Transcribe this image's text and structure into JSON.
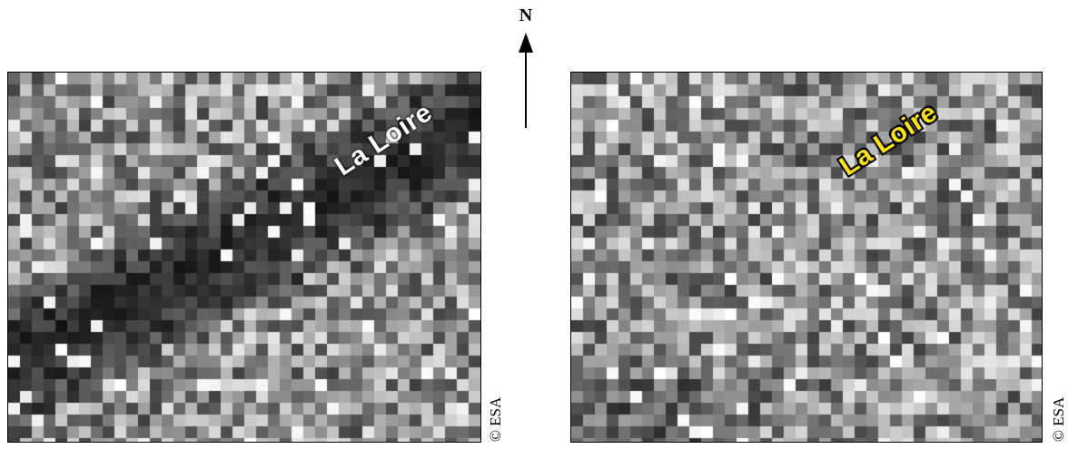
{
  "north_arrow": {
    "letter": "N",
    "icon": "north-arrow-icon"
  },
  "panels": [
    {
      "id": "left",
      "river_label": "La Loire",
      "label_color": "#ffffff",
      "credit": "© ESA"
    },
    {
      "id": "right",
      "river_label": "La Loire",
      "label_color": "#ffe600",
      "credit": "© ESA"
    }
  ]
}
